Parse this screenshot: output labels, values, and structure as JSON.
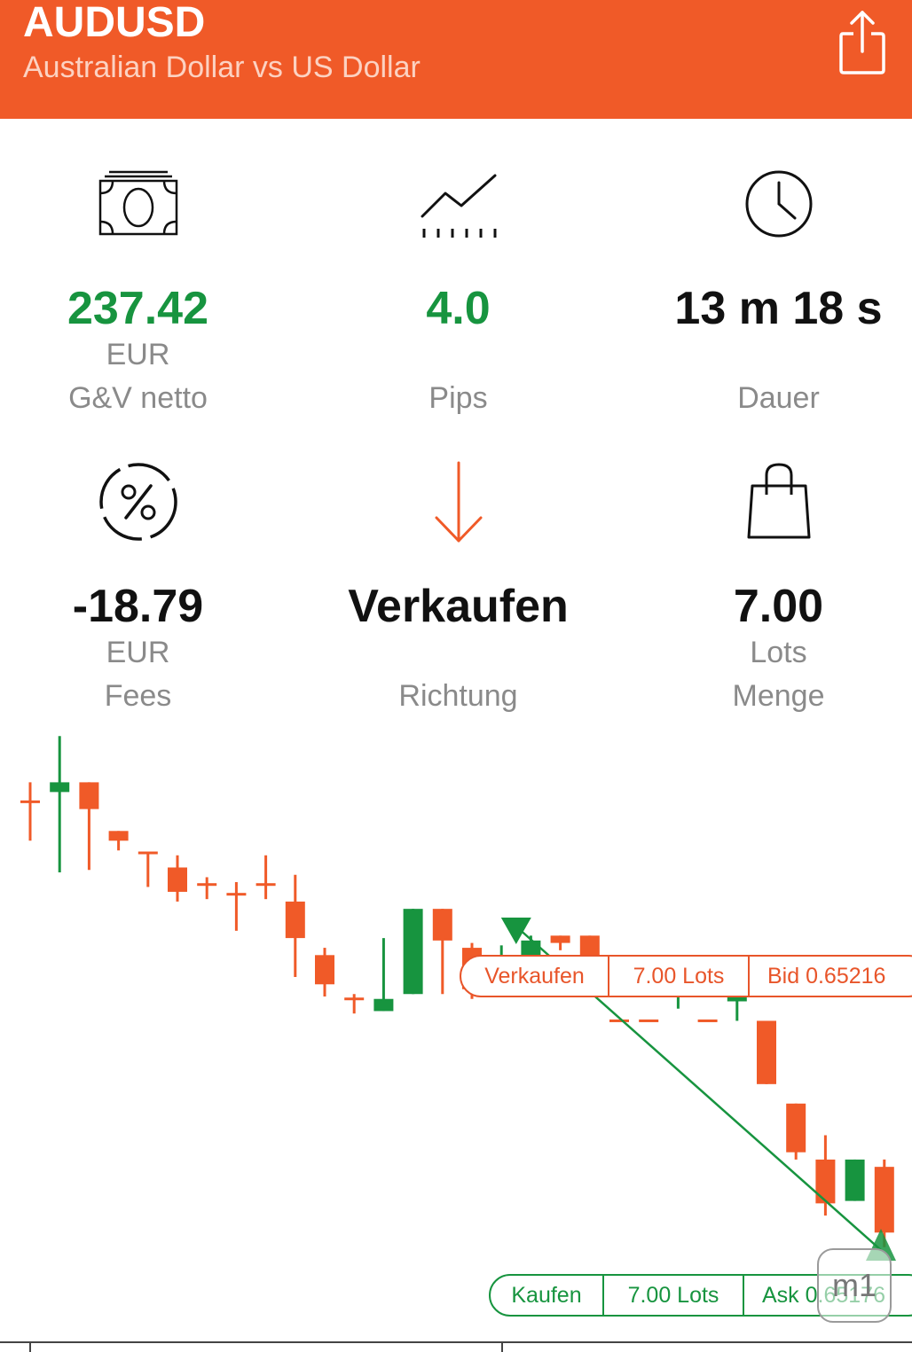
{
  "header": {
    "symbol": "AUDUSD",
    "description": "Australian Dollar vs US Dollar",
    "background_color": "#f05a28",
    "share_icon": "share-icon"
  },
  "stats": [
    {
      "icon": "banknote-icon",
      "value": "237.42",
      "unit": "EUR",
      "label": "G&V netto",
      "color": "#17943f"
    },
    {
      "icon": "line-chart-icon",
      "value": "4.0",
      "unit": "",
      "label": "Pips",
      "color": "#17943f"
    },
    {
      "icon": "clock-icon",
      "value": "13 m 18 s",
      "unit": "",
      "label": "Dauer",
      "color": "#111111"
    },
    {
      "icon": "percent-icon",
      "value": "-18.79",
      "unit": "EUR",
      "label": "Fees",
      "color": "#111111"
    },
    {
      "icon": "arrow-down-icon",
      "value": "Verkaufen",
      "unit": "",
      "label": "Richtung",
      "color": "#111111"
    },
    {
      "icon": "shopping-bag-icon",
      "value": "7.00",
      "unit": "Lots",
      "label": "Menge",
      "color": "#111111"
    }
  ],
  "chart_data": {
    "type": "candlestick",
    "timeframe": "m1",
    "up_color": "#17943f",
    "down_color": "#f05a28",
    "candles": [
      {
        "o": 0.65306,
        "h": 0.65314,
        "l": 0.6529,
        "c": 0.65306
      },
      {
        "o": 0.6531,
        "h": 0.65333,
        "l": 0.65277,
        "c": 0.65314
      },
      {
        "o": 0.65314,
        "h": 0.65314,
        "l": 0.65278,
        "c": 0.65303
      },
      {
        "o": 0.65294,
        "h": 0.65294,
        "l": 0.65286,
        "c": 0.6529
      },
      {
        "o": 0.65285,
        "h": 0.65285,
        "l": 0.65271,
        "c": 0.65285
      },
      {
        "o": 0.65279,
        "h": 0.65284,
        "l": 0.65265,
        "c": 0.65269
      },
      {
        "o": 0.65272,
        "h": 0.65275,
        "l": 0.65266,
        "c": 0.65272
      },
      {
        "o": 0.65268,
        "h": 0.65273,
        "l": 0.65253,
        "c": 0.65268
      },
      {
        "o": 0.65272,
        "h": 0.65284,
        "l": 0.65266,
        "c": 0.65272
      },
      {
        "o": 0.65265,
        "h": 0.65276,
        "l": 0.65234,
        "c": 0.6525
      },
      {
        "o": 0.65243,
        "h": 0.65246,
        "l": 0.65226,
        "c": 0.65231
      },
      {
        "o": 0.65225,
        "h": 0.65227,
        "l": 0.65219,
        "c": 0.65225
      },
      {
        "o": 0.6522,
        "h": 0.6525,
        "l": 0.6522,
        "c": 0.65225
      },
      {
        "o": 0.65227,
        "h": 0.65262,
        "l": 0.65227,
        "c": 0.65262
      },
      {
        "o": 0.65262,
        "h": 0.65262,
        "l": 0.65227,
        "c": 0.65249
      },
      {
        "o": 0.65246,
        "h": 0.65248,
        "l": 0.65225,
        "c": 0.65229
      },
      {
        "o": 0.65232,
        "h": 0.65247,
        "l": 0.65229,
        "c": 0.65234
      },
      {
        "o": 0.65239,
        "h": 0.65251,
        "l": 0.65239,
        "c": 0.65249
      },
      {
        "o": 0.65251,
        "h": 0.65251,
        "l": 0.65245,
        "c": 0.65248
      },
      {
        "o": 0.65251,
        "h": 0.65251,
        "l": 0.65231,
        "c": 0.65233
      },
      {
        "o": 0.65216,
        "h": 0.65216,
        "l": 0.65216,
        "c": 0.65216
      },
      {
        "o": 0.65216,
        "h": 0.65216,
        "l": 0.65216,
        "c": 0.65216
      },
      {
        "o": 0.65226,
        "h": 0.65237,
        "l": 0.65221,
        "c": 0.65229
      },
      {
        "o": 0.65216,
        "h": 0.65216,
        "l": 0.65216,
        "c": 0.65216
      },
      {
        "o": 0.65224,
        "h": 0.65231,
        "l": 0.65216,
        "c": 0.65226
      },
      {
        "o": 0.65216,
        "h": 0.65216,
        "l": 0.6519,
        "c": 0.6519
      },
      {
        "o": 0.65182,
        "h": 0.65182,
        "l": 0.65159,
        "c": 0.65162
      },
      {
        "o": 0.65159,
        "h": 0.65169,
        "l": 0.65136,
        "c": 0.65141
      },
      {
        "o": 0.65142,
        "h": 0.65159,
        "l": 0.65142,
        "c": 0.65159
      },
      {
        "o": 0.65156,
        "h": 0.65159,
        "l": 0.65123,
        "c": 0.65129
      }
    ],
    "entry": {
      "side": "Verkaufen",
      "price_label": "Bid 0.65216"
    },
    "exit": {
      "side": "Kaufen",
      "price_label": "Ask 0.65176"
    }
  },
  "order_tags": {
    "sell": {
      "side": "Verkaufen",
      "size": "7.00 Lots",
      "price": "Bid 0.65216"
    },
    "buy": {
      "side": "Kaufen",
      "size": "7.00 Lots",
      "price": "Ask 0.65176"
    }
  },
  "timeframe_button": "m1"
}
